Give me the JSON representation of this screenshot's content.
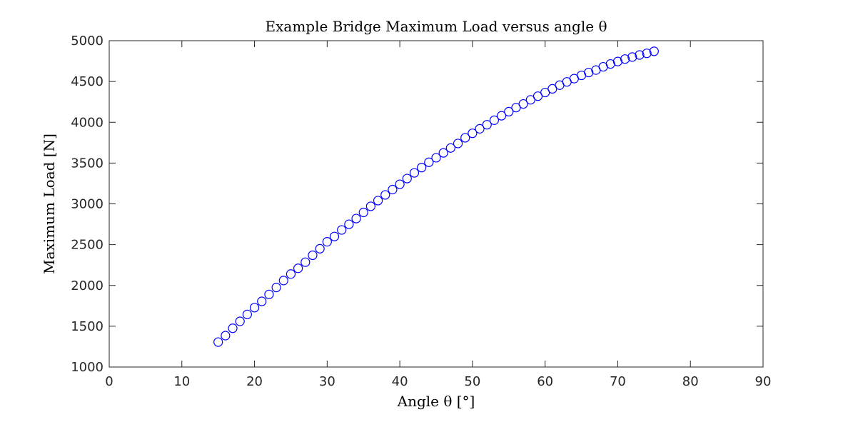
{
  "chart_data": {
    "type": "scatter",
    "title": "Example Bridge Maximum Load versus angle θ",
    "xlabel": "Angle θ [°]",
    "ylabel": "Maximum Load [N]",
    "xlim": [
      0,
      90
    ],
    "ylim": [
      1000,
      5000
    ],
    "xticks": [
      0,
      10,
      20,
      30,
      40,
      50,
      60,
      70,
      80,
      90
    ],
    "yticks": [
      1000,
      1500,
      2000,
      2500,
      3000,
      3500,
      4000,
      4500,
      5000
    ],
    "xtick_labels": [
      "0",
      "10",
      "20",
      "30",
      "40",
      "50",
      "60",
      "70",
      "80",
      "90"
    ],
    "ytick_labels": [
      "1000",
      "1500",
      "2000",
      "2500",
      "3000",
      "3500",
      "4000",
      "4500",
      "5000"
    ],
    "grid": false,
    "legend": "none",
    "marker": "open-circle",
    "marker_color": "#0000ff",
    "series": [
      {
        "x": [
          15,
          16,
          17,
          18,
          19,
          20,
          21,
          22,
          23,
          24,
          25,
          26,
          27,
          28,
          29,
          30,
          31,
          32,
          33,
          34,
          35,
          36,
          37,
          38,
          39,
          40,
          41,
          42,
          43,
          44,
          45,
          46,
          47,
          48,
          49,
          50,
          51,
          52,
          53,
          54,
          55,
          56,
          57,
          58,
          59,
          60,
          61,
          62,
          63,
          64,
          65,
          66,
          67,
          68,
          69,
          70,
          71,
          72,
          73,
          74,
          75
        ],
        "y": [
          1306,
          1385,
          1475,
          1560,
          1645,
          1728,
          1805,
          1890,
          1975,
          2060,
          2140,
          2210,
          2285,
          2370,
          2450,
          2535,
          2600,
          2680,
          2750,
          2820,
          2895,
          2970,
          3040,
          3110,
          3175,
          3240,
          3310,
          3380,
          3445,
          3510,
          3565,
          3625,
          3685,
          3740,
          3810,
          3865,
          3920,
          3970,
          4025,
          4080,
          4130,
          4180,
          4225,
          4275,
          4320,
          4365,
          4410,
          4455,
          4495,
          4535,
          4575,
          4610,
          4640,
          4680,
          4715,
          4745,
          4775,
          4800,
          4825,
          4845,
          4870
        ]
      }
    ]
  }
}
